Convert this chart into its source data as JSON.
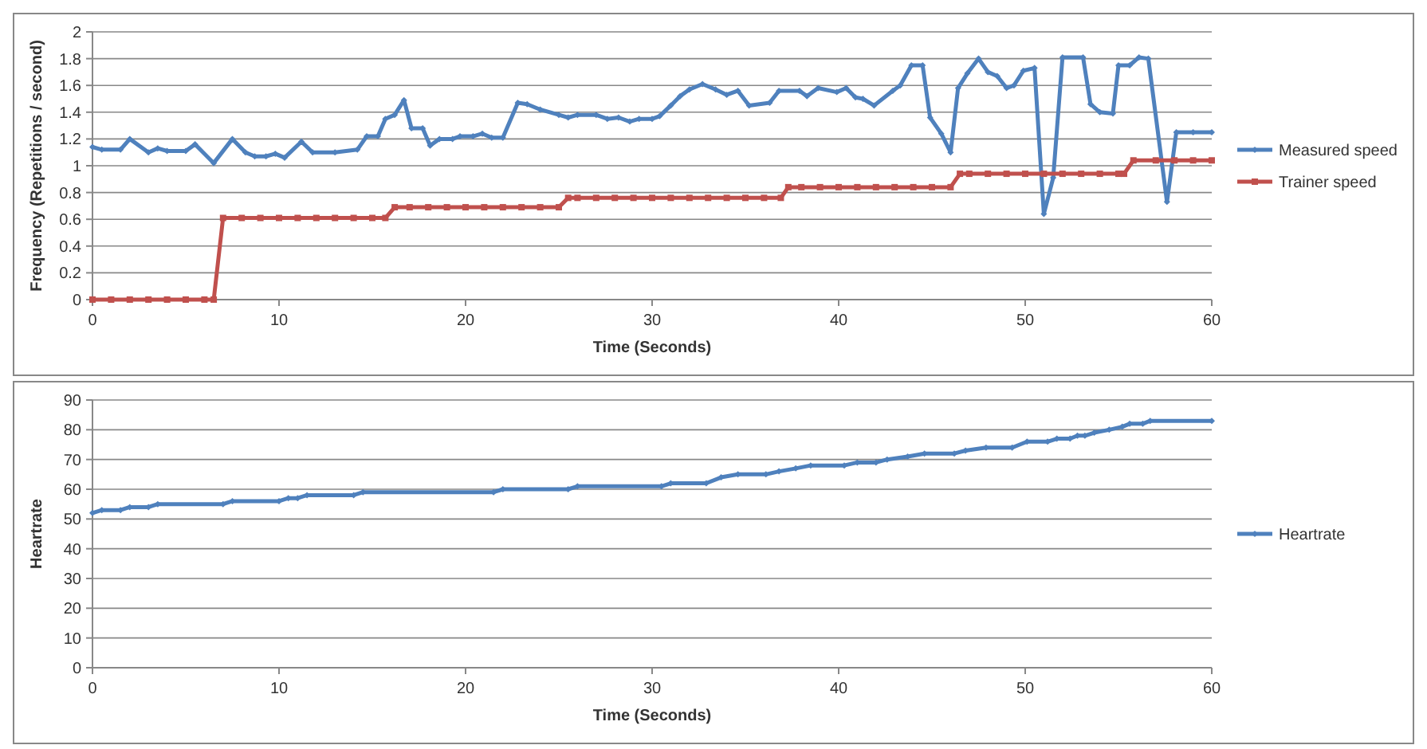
{
  "chart_data": [
    {
      "type": "line",
      "xlabel": "Time (Seconds)",
      "ylabel": "Frequency (Repetitions / second)",
      "xlim": [
        0,
        60
      ],
      "xticks": [
        0,
        10,
        20,
        30,
        40,
        50,
        60
      ],
      "ylim": [
        0,
        2
      ],
      "yticks": [
        0,
        0.2,
        0.4,
        0.6,
        0.8,
        1,
        1.2,
        1.4,
        1.6,
        1.8,
        2
      ],
      "grid": "y",
      "legend": "right",
      "series": [
        {
          "name": "Measured speed",
          "color": "#4f81bd",
          "marker": "diamond",
          "x": [
            0,
            0.5,
            1.5,
            2,
            3,
            3.5,
            4,
            5,
            5.5,
            6.5,
            7.5,
            8.2,
            8.7,
            9.3,
            9.8,
            10.3,
            11.2,
            11.8,
            13,
            14.2,
            14.7,
            15.3,
            15.7,
            16.2,
            16.7,
            17.1,
            17.7,
            18.1,
            18.6,
            19.3,
            19.7,
            20.4,
            20.9,
            21.4,
            22,
            22.8,
            23.3,
            24,
            25,
            25.5,
            26,
            27,
            27.6,
            28.2,
            28.8,
            29.3,
            30,
            30.4,
            31,
            31.5,
            32,
            32.7,
            33.4,
            34,
            34.6,
            35.2,
            36.3,
            36.8,
            37.9,
            38.3,
            38.9,
            39.9,
            40.4,
            40.9,
            41.3,
            41.9,
            42.9,
            43.3,
            43.9,
            44.5,
            44.9,
            45.5,
            46,
            46.4,
            46.9,
            47.5,
            48,
            48.5,
            49,
            49.4,
            49.9,
            50.5,
            51,
            51.5,
            52,
            53.1,
            53.5,
            54,
            54.7,
            55,
            55.6,
            56.1,
            56.6,
            57.6,
            58.1,
            59,
            60
          ],
          "values": [
            1.14,
            1.12,
            1.12,
            1.2,
            1.1,
            1.13,
            1.11,
            1.11,
            1.16,
            1.02,
            1.2,
            1.1,
            1.07,
            1.07,
            1.09,
            1.06,
            1.18,
            1.1,
            1.1,
            1.12,
            1.22,
            1.22,
            1.35,
            1.38,
            1.49,
            1.28,
            1.28,
            1.15,
            1.2,
            1.2,
            1.22,
            1.22,
            1.24,
            1.21,
            1.21,
            1.47,
            1.46,
            1.42,
            1.38,
            1.36,
            1.38,
            1.38,
            1.35,
            1.36,
            1.33,
            1.35,
            1.35,
            1.37,
            1.45,
            1.52,
            1.57,
            1.61,
            1.57,
            1.53,
            1.56,
            1.45,
            1.47,
            1.56,
            1.56,
            1.52,
            1.58,
            1.55,
            1.58,
            1.51,
            1.5,
            1.45,
            1.56,
            1.6,
            1.75,
            1.75,
            1.36,
            1.24,
            1.1,
            1.58,
            1.69,
            1.8,
            1.7,
            1.67,
            1.58,
            1.6,
            1.71,
            1.73,
            0.64,
            0.91,
            1.81,
            1.81,
            1.46,
            1.4,
            1.39,
            1.75,
            1.75,
            1.81,
            1.8,
            0.73,
            1.25,
            1.25,
            1.25
          ]
        },
        {
          "name": "Trainer speed",
          "color": "#c0504d",
          "marker": "square",
          "x": [
            0,
            1,
            2,
            3,
            4,
            5,
            6,
            6.5,
            7,
            8,
            9,
            10,
            11,
            12,
            13,
            14,
            15,
            15.7,
            16.2,
            17,
            18,
            19,
            20,
            21,
            22,
            23,
            24,
            25,
            25.5,
            26,
            27,
            28,
            29,
            30,
            31,
            32,
            33,
            34,
            35,
            36,
            36.9,
            37.3,
            38,
            39,
            40,
            41,
            42,
            43,
            44,
            45,
            46,
            46.5,
            47,
            48,
            49,
            50,
            51,
            52,
            53,
            54,
            55,
            55.3,
            55.8,
            57,
            58,
            59,
            60
          ],
          "values": [
            0,
            0,
            0,
            0,
            0,
            0,
            0,
            0,
            0.61,
            0.61,
            0.61,
            0.61,
            0.61,
            0.61,
            0.61,
            0.61,
            0.61,
            0.61,
            0.69,
            0.69,
            0.69,
            0.69,
            0.69,
            0.69,
            0.69,
            0.69,
            0.69,
            0.69,
            0.76,
            0.76,
            0.76,
            0.76,
            0.76,
            0.76,
            0.76,
            0.76,
            0.76,
            0.76,
            0.76,
            0.76,
            0.76,
            0.84,
            0.84,
            0.84,
            0.84,
            0.84,
            0.84,
            0.84,
            0.84,
            0.84,
            0.84,
            0.94,
            0.94,
            0.94,
            0.94,
            0.94,
            0.94,
            0.94,
            0.94,
            0.94,
            0.94,
            0.94,
            1.04,
            1.04,
            1.04,
            1.04,
            1.04
          ]
        }
      ]
    },
    {
      "type": "line",
      "xlabel": "Time (Seconds)",
      "ylabel": "Heartrate",
      "xlim": [
        0,
        60
      ],
      "xticks": [
        0,
        10,
        20,
        30,
        40,
        50,
        60
      ],
      "ylim": [
        0,
        90
      ],
      "yticks": [
        0,
        10,
        20,
        30,
        40,
        50,
        60,
        70,
        80,
        90
      ],
      "grid": "y",
      "legend": "right",
      "series": [
        {
          "name": "Heartrate",
          "color": "#4f81bd",
          "marker": "diamond",
          "x": [
            0,
            0.5,
            1.5,
            2,
            3,
            3.5,
            7,
            7.5,
            10,
            10.5,
            11,
            11.5,
            14,
            14.5,
            21.5,
            22,
            25.5,
            26,
            30.5,
            31,
            32.9,
            33.7,
            34.6,
            36.1,
            36.8,
            37.7,
            38.5,
            40.3,
            41,
            42,
            42.6,
            43.7,
            44.6,
            46.2,
            46.8,
            47.9,
            49.3,
            50.1,
            51.2,
            51.7,
            52.4,
            52.8,
            53.2,
            53.7,
            54.5,
            55.2,
            55.6,
            56.3,
            56.7,
            60
          ],
          "values": [
            52,
            53,
            53,
            54,
            54,
            55,
            55,
            56,
            56,
            57,
            57,
            58,
            58,
            59,
            59,
            60,
            60,
            61,
            61,
            62,
            62,
            64,
            65,
            65,
            66,
            67,
            68,
            68,
            69,
            69,
            70,
            71,
            72,
            72,
            73,
            74,
            74,
            76,
            76,
            77,
            77,
            78,
            78,
            79,
            80,
            81,
            82,
            82,
            83,
            83
          ]
        }
      ]
    }
  ]
}
